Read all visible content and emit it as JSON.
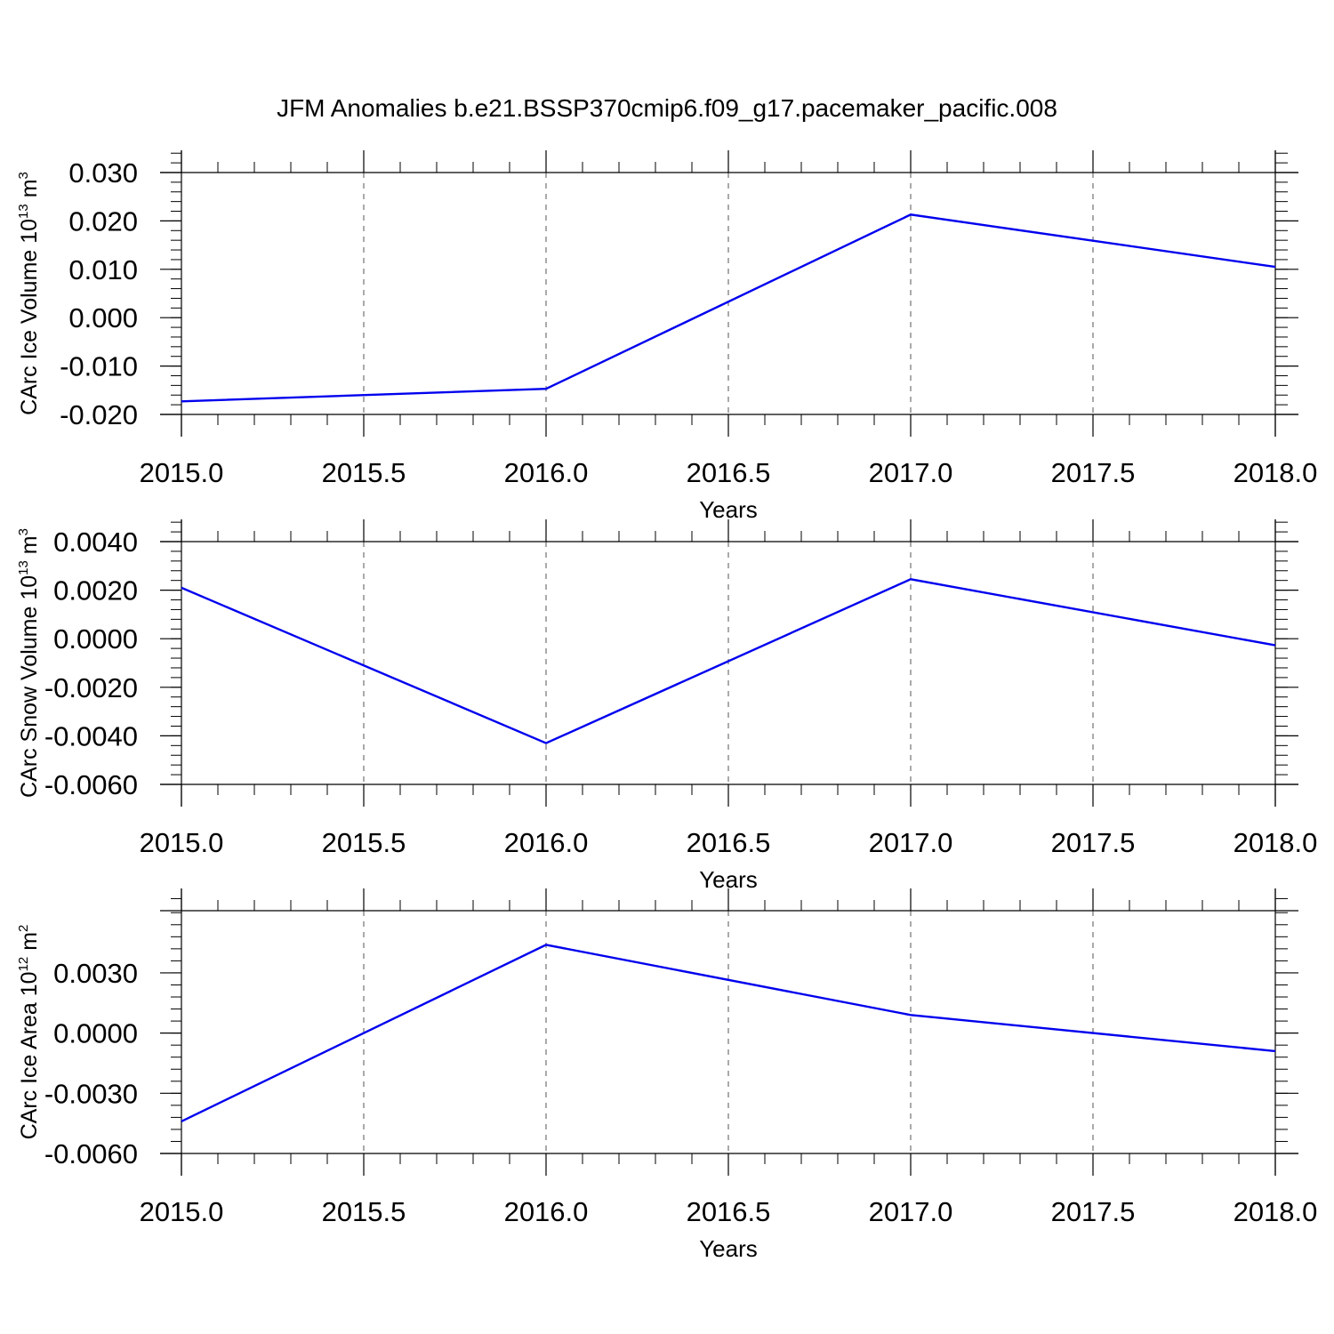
{
  "title": "JFM Anomalies b.e21.BSSP370cmip6.f09_g17.pacemaker_pacific.008",
  "line_color": "#0000ee",
  "chart_data": [
    {
      "type": "line",
      "ylabel": "CArc Ice Volume 10",
      "ylabel_exp": "13",
      "ylabel_unit": " m",
      "ylabel_unit_exp": "3",
      "xlabel": "Years",
      "xlim": [
        2015.0,
        2018.0
      ],
      "ylim": [
        -0.02,
        0.03
      ],
      "x_ticks": [
        2015.0,
        2015.5,
        2016.0,
        2016.5,
        2017.0,
        2017.5,
        2018.0
      ],
      "x_tick_labels": [
        "2015.0",
        "2015.5",
        "2016.0",
        "2016.5",
        "2017.0",
        "2017.5",
        "2018.0"
      ],
      "y_ticks": [
        -0.02,
        -0.01,
        0.0,
        0.01,
        0.02,
        0.03
      ],
      "y_tick_labels": [
        "-0.020",
        "-0.010",
        "0.000",
        "0.010",
        "0.020",
        "0.030"
      ],
      "y_minor_step": 0.002,
      "x": [
        2015,
        2016,
        2017,
        2018
      ],
      "y": [
        -0.0173,
        -0.0147,
        0.0213,
        0.0105
      ],
      "grid": "vertical-dashed"
    },
    {
      "type": "line",
      "ylabel": "CArc Snow Volume 10",
      "ylabel_exp": "13",
      "ylabel_unit": " m",
      "ylabel_unit_exp": "3",
      "xlabel": "Years",
      "xlim": [
        2015.0,
        2018.0
      ],
      "ylim": [
        -0.006,
        0.004
      ],
      "x_ticks": [
        2015.0,
        2015.5,
        2016.0,
        2016.5,
        2017.0,
        2017.5,
        2018.0
      ],
      "x_tick_labels": [
        "2015.0",
        "2015.5",
        "2016.0",
        "2016.5",
        "2017.0",
        "2017.5",
        "2018.0"
      ],
      "y_ticks": [
        -0.006,
        -0.004,
        -0.002,
        0.0,
        0.002,
        0.004
      ],
      "y_tick_labels": [
        "-0.0060",
        "-0.0040",
        "-0.0020",
        "0.0000",
        "0.0020",
        "0.0040"
      ],
      "y_minor_step": 0.0004,
      "x": [
        2015,
        2016,
        2017,
        2018
      ],
      "y": [
        0.0021,
        -0.0043,
        0.00245,
        -0.00027
      ],
      "grid": "vertical-dashed"
    },
    {
      "type": "line",
      "ylabel": "CArc Ice Area 10",
      "ylabel_exp": "12",
      "ylabel_unit": " m",
      "ylabel_unit_exp": "2",
      "xlabel": "Years",
      "xlim": [
        2015.0,
        2018.0
      ],
      "ylim": [
        -0.006,
        0.0061
      ],
      "x_ticks": [
        2015.0,
        2015.5,
        2016.0,
        2016.5,
        2017.0,
        2017.5,
        2018.0
      ],
      "x_tick_labels": [
        "2015.0",
        "2015.5",
        "2016.0",
        "2016.5",
        "2017.0",
        "2017.5",
        "2018.0"
      ],
      "y_ticks": [
        -0.006,
        -0.003,
        0.0,
        0.003
      ],
      "y_tick_labels": [
        "-0.0060",
        "-0.0030",
        "0.0000",
        "0.0030"
      ],
      "y_minor_step": 0.0006,
      "x": [
        2015,
        2016,
        2017,
        2018
      ],
      "y": [
        -0.0044,
        0.0044,
        0.0009,
        -0.0009
      ],
      "grid": "vertical-dashed"
    }
  ]
}
